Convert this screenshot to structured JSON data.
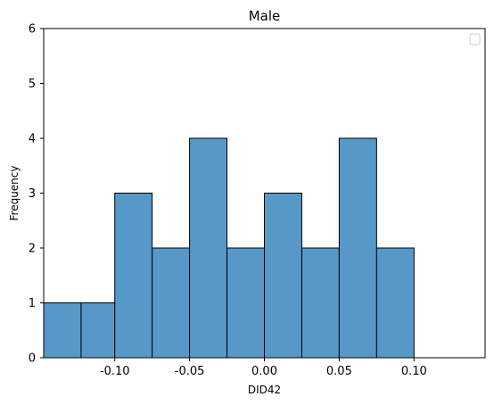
{
  "chart_data": {
    "type": "bar",
    "title": "Male",
    "xlabel": "DID42",
    "ylabel": "Frequency",
    "xlim": [
      -0.1475,
      0.1475
    ],
    "ylim": [
      0,
      6
    ],
    "xticks": [
      -0.1,
      -0.05,
      0.0,
      0.05,
      0.1
    ],
    "xtick_labels": [
      "-0.10",
      "-0.05",
      "0.00",
      "0.05",
      "0.10"
    ],
    "yticks": [
      0,
      1,
      2,
      3,
      4,
      5,
      6
    ],
    "ytick_labels": [
      "0",
      "1",
      "2",
      "3",
      "4",
      "5",
      "6"
    ],
    "bins": [
      {
        "x0": -0.1475,
        "x1": -0.1225,
        "count": 1
      },
      {
        "x0": -0.1225,
        "x1": -0.1,
        "count": 1
      },
      {
        "x0": -0.1,
        "x1": -0.075,
        "count": 3
      },
      {
        "x0": -0.075,
        "x1": -0.05,
        "count": 2
      },
      {
        "x0": -0.05,
        "x1": -0.025,
        "count": 4
      },
      {
        "x0": -0.025,
        "x1": 0.0,
        "count": 2
      },
      {
        "x0": 0.0,
        "x1": 0.025,
        "count": 3
      },
      {
        "x0": 0.025,
        "x1": 0.05,
        "count": 2
      },
      {
        "x0": 0.05,
        "x1": 0.075,
        "count": 4
      },
      {
        "x0": 0.075,
        "x1": 0.1,
        "count": 2
      }
    ],
    "bar_color": "#5699c8",
    "edge_color": "#000000",
    "grid": false,
    "legend": {
      "position": "upper right",
      "entries": []
    }
  }
}
